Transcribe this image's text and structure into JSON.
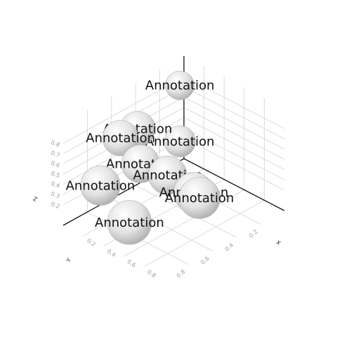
{
  "chart_data": {
    "type": "scatter",
    "title": "",
    "axes": {
      "x": {
        "label": "X",
        "ticks": [
          "0.2",
          "0.4",
          "0.6",
          "0.8"
        ]
      },
      "y": {
        "label": "Y",
        "ticks": [
          "0.2",
          "0.4",
          "0.6",
          "0.8"
        ]
      },
      "z": {
        "label": "Z",
        "ticks": [
          "0.2",
          "0.3",
          "0.4",
          "0.5",
          "0.6",
          "0.7",
          "0.8"
        ]
      }
    },
    "grid": true,
    "marker": {
      "shape": "sphere",
      "color": "#cfcfcf"
    },
    "points": [
      {
        "label": "Annotation",
        "x": 0.08,
        "y": 0.1,
        "z": 0.82
      },
      {
        "label": "Annotation",
        "x": 0.2,
        "y": 0.55,
        "z": 0.75
      },
      {
        "label": "Annotation",
        "x": 0.15,
        "y": 0.65,
        "z": 0.7
      },
      {
        "label": "Annotation",
        "x": 0.35,
        "y": 0.65,
        "z": 0.55
      },
      {
        "label": "Annotation",
        "x": 0.2,
        "y": 0.2,
        "z": 0.4
      },
      {
        "label": "Annotation",
        "x": 0.25,
        "y": 0.9,
        "z": 0.45
      },
      {
        "label": "Annotation",
        "x": 0.5,
        "y": 0.55,
        "z": 0.45
      },
      {
        "label": "Annotation",
        "x": 0.7,
        "y": 0.5,
        "z": 0.35
      },
      {
        "label": "Annotation",
        "x": 0.78,
        "y": 0.52,
        "z": 0.35
      },
      {
        "label": "Annotation",
        "x": 0.6,
        "y": 0.95,
        "z": 0.3
      }
    ]
  }
}
